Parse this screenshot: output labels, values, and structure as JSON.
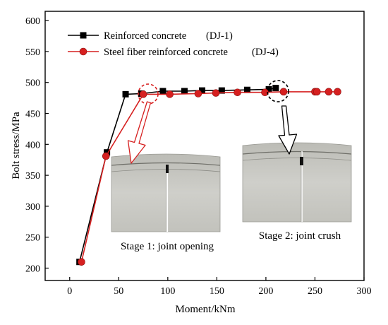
{
  "chart_data": {
    "type": "line",
    "xlabel": "Moment/kNm",
    "ylabel": "Bolt stress/MPa",
    "xlim": [
      -25,
      300
    ],
    "ylim": [
      180,
      615
    ],
    "xticks": [
      0,
      50,
      100,
      150,
      200,
      250,
      300
    ],
    "yticks": [
      200,
      250,
      300,
      350,
      400,
      450,
      500,
      550,
      600
    ],
    "legend_position": "top-left",
    "series": [
      {
        "name": "Reinforced concrete",
        "tag": "(DJ-1)",
        "color": "#000000",
        "marker": "square",
        "x": [
          10,
          38,
          57,
          73,
          95,
          117,
          135,
          155,
          181,
          203,
          210
        ],
        "y": [
          210,
          387,
          481,
          482,
          486,
          486,
          487,
          487,
          488,
          489,
          491
        ]
      },
      {
        "name": "Steel fiber reinforced concrete",
        "tag": "(DJ-4)",
        "color": "#d62020",
        "marker": "circle",
        "x": [
          12,
          37,
          75,
          102,
          131,
          149,
          171,
          199,
          218,
          250,
          252,
          264,
          273
        ],
        "y": [
          210,
          381,
          481,
          481,
          482,
          483,
          484,
          484,
          485,
          485,
          485,
          485,
          485
        ]
      }
    ],
    "annotations": [
      {
        "id": "stage1",
        "text": "Stage 1: joint opening",
        "color": "#d62020",
        "circle_at": [
          77,
          487
        ]
      },
      {
        "id": "stage2",
        "text": "Stage 2: joint crush",
        "color": "#000000",
        "circle_at": [
          208,
          494
        ]
      }
    ]
  }
}
